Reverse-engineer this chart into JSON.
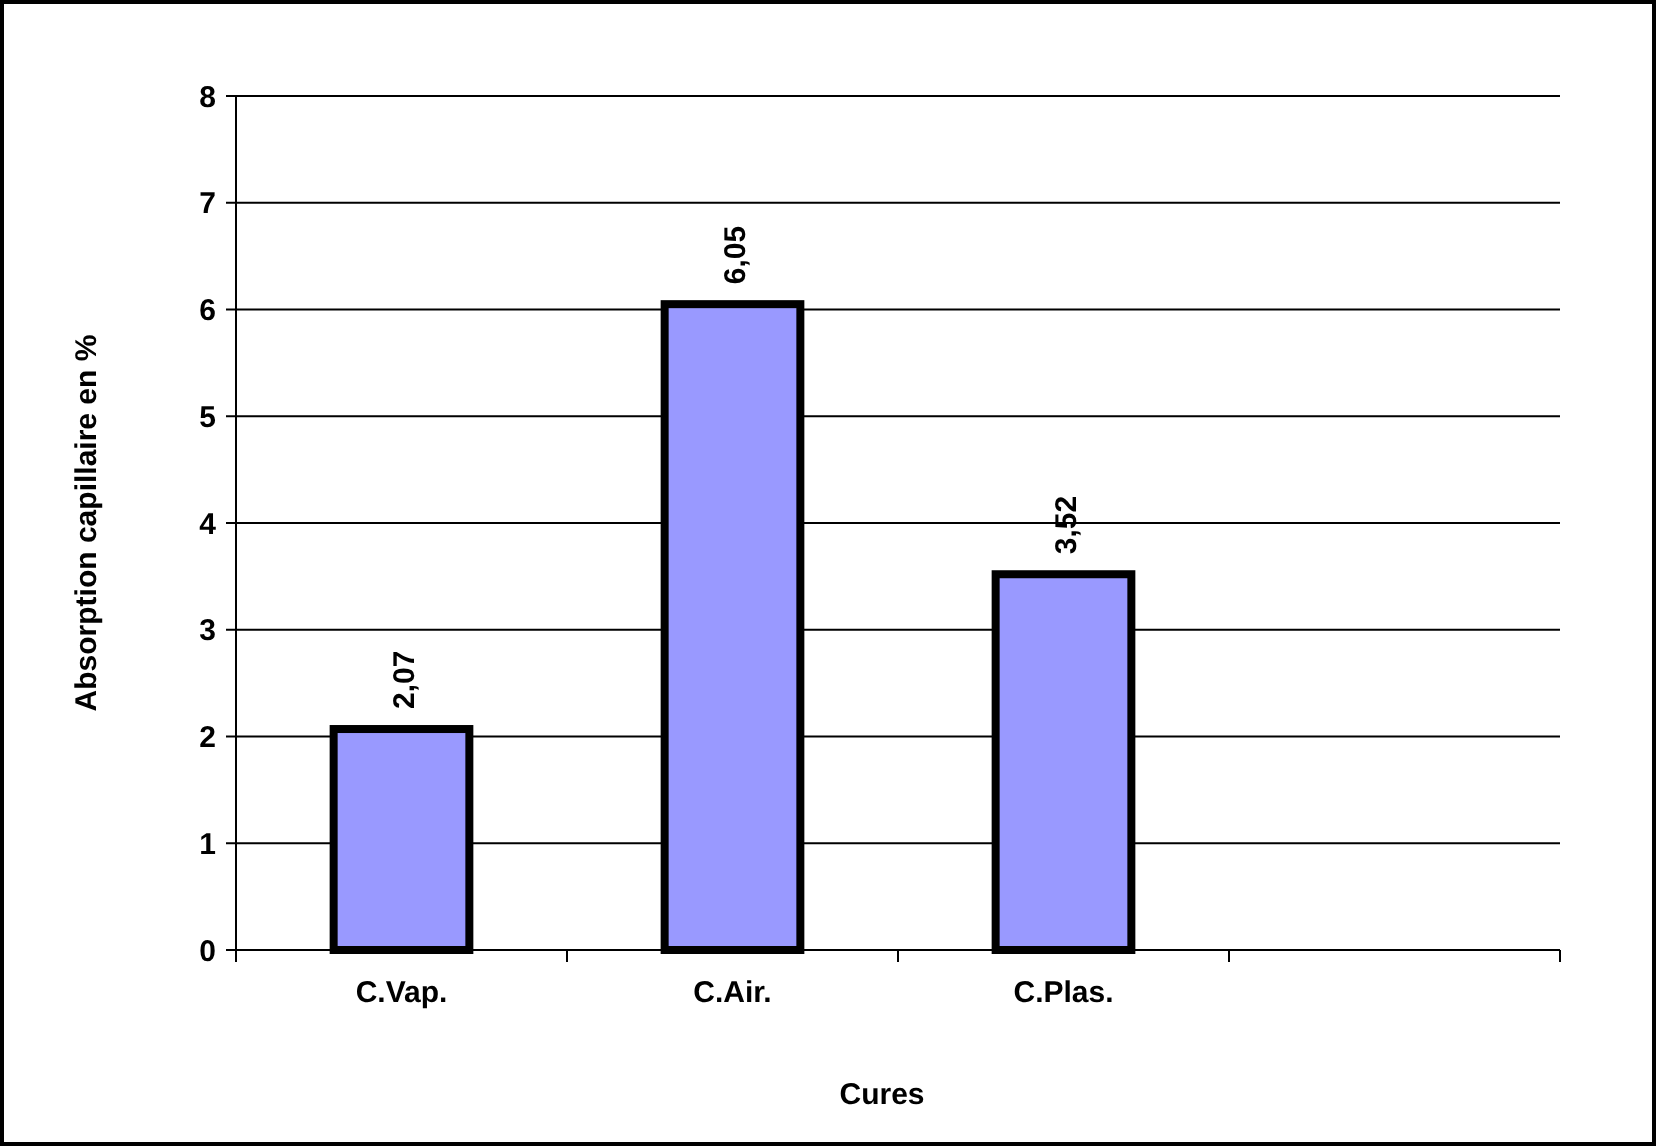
{
  "chart_data": {
    "type": "bar",
    "xlabel": "Cures",
    "ylabel": "Absorption capillaire en %",
    "categories": [
      "C.Vap.",
      "C.Air.",
      "C.Plas.",
      null
    ],
    "values": [
      2.07,
      6.05,
      3.52,
      null
    ],
    "value_labels": [
      "2,07",
      "6,05",
      "3,52",
      null
    ],
    "color": "#9999ff",
    "ylim": [
      0,
      8
    ],
    "yticks": [
      0,
      1,
      2,
      3,
      4,
      5,
      6,
      7,
      8
    ],
    "grid": "y"
  }
}
